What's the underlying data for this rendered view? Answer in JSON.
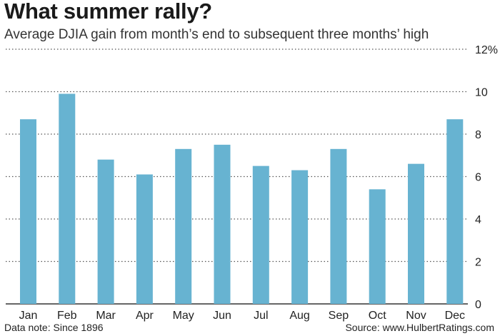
{
  "chart_data": {
    "type": "bar",
    "title": "What summer rally?",
    "subtitle": "Average DJIA gain from month’s end to subsequent three months’ high",
    "categories": [
      "Jan",
      "Feb",
      "Mar",
      "Apr",
      "May",
      "Jun",
      "Jul",
      "Aug",
      "Sep",
      "Oct",
      "Nov",
      "Dec"
    ],
    "values": [
      8.7,
      9.9,
      6.8,
      6.1,
      7.3,
      7.5,
      6.5,
      6.3,
      7.3,
      5.4,
      6.6,
      8.7
    ],
    "ylim": [
      0,
      12
    ],
    "yticks": [
      {
        "value": 0,
        "label": "0"
      },
      {
        "value": 2,
        "label": "2"
      },
      {
        "value": 4,
        "label": "4"
      },
      {
        "value": 6,
        "label": "6"
      },
      {
        "value": 8,
        "label": "8"
      },
      {
        "value": 10,
        "label": "10"
      },
      {
        "value": 12,
        "label": "12%"
      }
    ],
    "xlabel": "",
    "ylabel": "",
    "grid": true,
    "bar_color": "#67b3d1",
    "note": "Data note: Since 1896",
    "source": "Source: www.HulbertRatings.com"
  }
}
